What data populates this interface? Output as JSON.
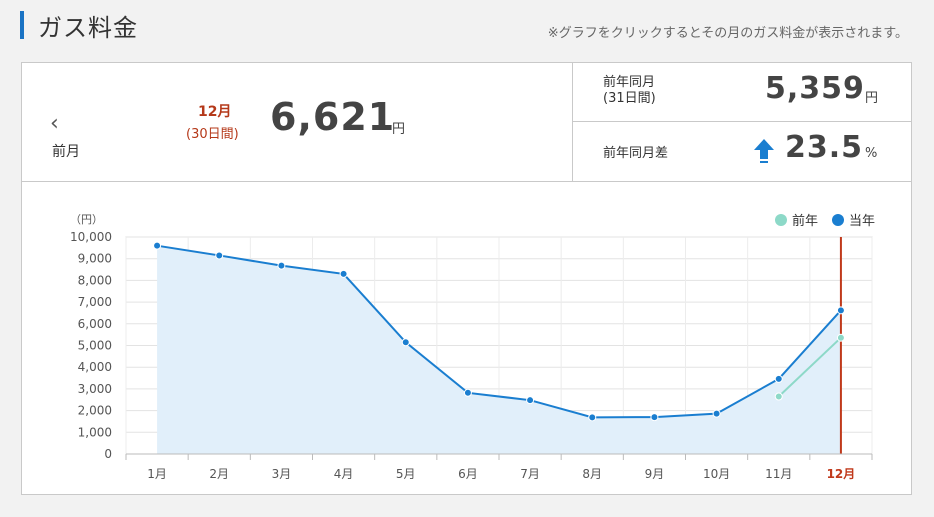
{
  "header": {
    "title": "ガス料金",
    "note": "※グラフをクリックするとその月のガス料金が表示されます。"
  },
  "summary": {
    "prev_label": "前月",
    "prev_icon": "chevron-left-icon",
    "month": "12月",
    "days": "(30日間)",
    "amount": "6,621",
    "unit": "円",
    "last_year_label_line1": "前年同月",
    "last_year_label_line2": "(31日間)",
    "last_year_amount": "5,359",
    "last_year_unit": "円",
    "diff_label": "前年同月差",
    "diff_icon": "arrow-up-icon",
    "diff_value": "23.5",
    "diff_unit": "%"
  },
  "colors": {
    "current": "#1a7ed0",
    "previous": "#8dd9c8",
    "area": "#e1effa",
    "highlight": "#c0391b",
    "accent": "#1a73c4"
  },
  "chart_data": {
    "type": "line",
    "ylabel": "（円）",
    "ylim": [
      0,
      10000
    ],
    "yticks": [
      "10,000",
      "9,000",
      "8,000",
      "7,000",
      "6,000",
      "5,000",
      "4,000",
      "3,000",
      "2,000",
      "1,000",
      "0"
    ],
    "categories": [
      "1月",
      "2月",
      "3月",
      "4月",
      "5月",
      "6月",
      "7月",
      "8月",
      "9月",
      "10月",
      "11月",
      "12月"
    ],
    "selected": "12月",
    "series": [
      {
        "name": "当年",
        "values": [
          9600,
          9150,
          8680,
          8300,
          5150,
          2820,
          2480,
          1690,
          1700,
          1860,
          3460,
          6621
        ]
      },
      {
        "name": "前年",
        "values": [
          null,
          null,
          null,
          null,
          null,
          null,
          null,
          null,
          null,
          null,
          2650,
          5359
        ]
      }
    ]
  }
}
